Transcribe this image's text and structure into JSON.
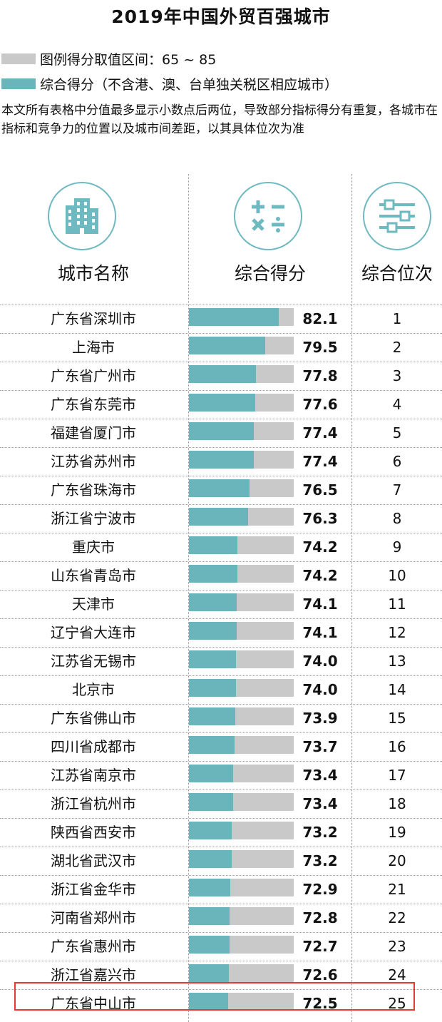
{
  "title": "2019年中国外贸百强城市",
  "legend": {
    "range_label": "图例得分取值区间：65 ~ 85",
    "score_label": "综合得分（不含港、澳、台单独关税区相应城市）"
  },
  "note": "本文所有表格中分值最多显示小数点后两位，导致部分指标得分有重复，各城市在指标和竞争力的位置以及城市间差距，以其具体位次为准",
  "columns": {
    "city": "城市名称",
    "score": "综合得分",
    "rank": "综合位次"
  },
  "colors": {
    "bar": "#6ab5bb",
    "bar_background": "#c9c9c9",
    "highlight_border": "#e53a2f"
  },
  "icons": [
    "building-icon",
    "math-operators-icon",
    "sliders-icon"
  ],
  "highlighted_rank": 25,
  "chart_data": {
    "type": "bar",
    "orientation": "horizontal",
    "xlim": [
      65,
      85
    ],
    "categories": [
      "广东省深圳市",
      "上海市",
      "广东省广州市",
      "广东省东莞市",
      "福建省厦门市",
      "江苏省苏州市",
      "广东省珠海市",
      "浙江省宁波市",
      "重庆市",
      "山东省青岛市",
      "天津市",
      "辽宁省大连市",
      "江苏省无锡市",
      "北京市",
      "广东省佛山市",
      "四川省成都市",
      "江苏省南京市",
      "浙江省杭州市",
      "陕西省西安市",
      "湖北省武汉市",
      "浙江省金华市",
      "河南省郑州市",
      "广东省惠州市",
      "浙江省嘉兴市",
      "广东省中山市"
    ],
    "values": [
      82.1,
      79.5,
      77.8,
      77.6,
      77.4,
      77.4,
      76.5,
      76.3,
      74.2,
      74.2,
      74.1,
      74.1,
      74.0,
      74.0,
      73.9,
      73.7,
      73.4,
      73.4,
      73.2,
      73.2,
      72.9,
      72.8,
      72.7,
      72.6,
      72.5
    ],
    "value_labels": [
      "82.1",
      "79.5",
      "77.8",
      "77.6",
      "77.4",
      "77.4",
      "76.5",
      "76.3",
      "74.2",
      "74.2",
      "74.1",
      "74.1",
      "74.0",
      "74.0",
      "73.9",
      "73.7",
      "73.4",
      "73.4",
      "73.2",
      "73.2",
      "72.9",
      "72.8",
      "72.7",
      "72.6",
      "72.5"
    ],
    "ranks": [
      1,
      2,
      3,
      4,
      5,
      6,
      7,
      8,
      9,
      10,
      11,
      12,
      13,
      14,
      15,
      16,
      17,
      18,
      19,
      20,
      21,
      22,
      23,
      24,
      25
    ]
  }
}
